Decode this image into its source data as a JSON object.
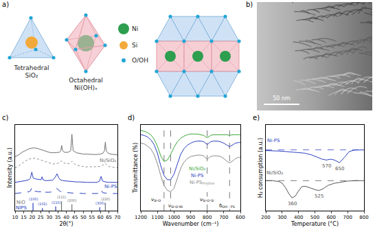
{
  "panel_a": {
    "label": "a)",
    "polyhedra": [
      {
        "name": "Tetrahedral",
        "formula": "SiO₂"
      },
      {
        "name": "Octahedral",
        "formula": "Ni(OH)ₓ"
      }
    ],
    "key": [
      {
        "text": "Ni",
        "color": "#2e9e4f"
      },
      {
        "text": "Si",
        "color": "#f2a93b"
      },
      {
        "text": "O/OH",
        "color": "#22a6d6"
      }
    ]
  },
  "panel_b": {
    "label": "b)",
    "scale_bar": "50 nm"
  },
  "chart_data": [
    {
      "panel_label": "c)",
      "type": "line",
      "x_label": "2θ(°)",
      "y_label": "Intensity (a.u.)",
      "xlim": [
        10,
        70
      ],
      "xticks": [
        10,
        15,
        20,
        25,
        30,
        35,
        40,
        45,
        50,
        55,
        60,
        65,
        70
      ],
      "ylim": [
        0,
        10
      ],
      "tick_labels": "x",
      "grid": false,
      "series": [
        {
          "color": "#707070",
          "line_style": "solid",
          "x": [
            10,
            12,
            14,
            16,
            18,
            20,
            22,
            24,
            26,
            28,
            30,
            32,
            34,
            36,
            36.8,
            37.3,
            37.8,
            39,
            41,
            42.6,
            43.3,
            44.0,
            46,
            48,
            50,
            52,
            54,
            56,
            58,
            60,
            61.5,
            62.4,
            62.9,
            63.4,
            64.5,
            66,
            68,
            70
          ],
          "values": [
            6.3,
            6.5,
            6.8,
            7.0,
            7.2,
            7.3,
            7.3,
            7.2,
            7.05,
            6.9,
            6.8,
            6.75,
            6.75,
            6.8,
            7.0,
            7.6,
            7.0,
            6.8,
            6.8,
            7.0,
            8.9,
            7.0,
            6.75,
            6.65,
            6.6,
            6.6,
            6.55,
            6.55,
            6.55,
            6.6,
            6.7,
            7.0,
            8.0,
            7.0,
            6.7,
            6.6,
            6.55,
            6.5
          ]
        },
        {
          "color": "#8c8c8c",
          "line_style": "dotted",
          "x": [
            10,
            12,
            14,
            16,
            18,
            20,
            22,
            24,
            26,
            28,
            30,
            32,
            34,
            35,
            36,
            37.3,
            38.5,
            40,
            42,
            43.3,
            44.5,
            46,
            48,
            50,
            52,
            54,
            56,
            58,
            60,
            61,
            62.9,
            64.5,
            66,
            68,
            70
          ],
          "values": [
            5.0,
            5.2,
            5.5,
            5.8,
            6.0,
            6.1,
            6.1,
            6.0,
            5.85,
            5.7,
            5.55,
            5.45,
            5.45,
            5.5,
            5.6,
            5.8,
            5.6,
            5.45,
            5.5,
            5.75,
            5.5,
            5.3,
            5.2,
            5.15,
            5.1,
            5.1,
            5.1,
            5.1,
            5.15,
            5.25,
            5.5,
            5.2,
            5.1,
            5.05,
            5.0
          ]
        },
        {
          "color": "#2b3fc0",
          "line_style": "solid",
          "x": [
            10,
            12,
            14,
            16,
            18,
            19,
            19.8,
            20.6,
            22,
            24,
            25.2,
            25.8,
            26.4,
            28,
            30,
            32,
            33.5,
            34.6,
            35.4,
            36.5,
            38,
            40,
            42,
            44,
            46,
            48,
            50,
            52,
            54,
            56,
            58,
            59.5,
            60.4,
            61.3,
            63,
            65,
            67,
            70
          ],
          "values": [
            3.3,
            3.35,
            3.4,
            3.5,
            3.6,
            3.8,
            4.5,
            3.8,
            3.7,
            3.6,
            3.6,
            3.95,
            3.6,
            3.5,
            3.5,
            3.55,
            3.9,
            4.3,
            3.9,
            3.6,
            3.5,
            3.45,
            3.4,
            3.4,
            3.35,
            3.35,
            3.3,
            3.3,
            3.3,
            3.3,
            3.3,
            3.45,
            4.0,
            3.45,
            3.35,
            3.3,
            3.3,
            3.3
          ]
        },
        {
          "color": "#2b3fc0",
          "line_style": "dash",
          "x": [
            10,
            12,
            14,
            16,
            18,
            19,
            19.8,
            20.6,
            22,
            24,
            25.2,
            25.8,
            26.4,
            28,
            30,
            32,
            33.5,
            34.6,
            35.4,
            36.5,
            38,
            40,
            42,
            44,
            46,
            48,
            50,
            52,
            54,
            56,
            58,
            59.5,
            60.4,
            61.3,
            63,
            65,
            67,
            70
          ],
          "values": [
            2.0,
            2.05,
            2.1,
            2.15,
            2.2,
            2.3,
            2.7,
            2.3,
            2.25,
            2.2,
            2.2,
            2.4,
            2.2,
            2.15,
            2.15,
            2.2,
            2.4,
            2.6,
            2.4,
            2.25,
            2.15,
            2.1,
            2.1,
            2.05,
            2.05,
            2.0,
            2.0,
            2.0,
            2.0,
            2.0,
            2.0,
            2.1,
            2.45,
            2.1,
            2.05,
            2.0,
            2.0,
            2.0
          ]
        }
      ],
      "references": [
        {
          "color": "#707070",
          "x": [
            37.2,
            43.3,
            62.9
          ],
          "values": [
            1.1,
            0.75,
            0.9
          ],
          "labels": [
            "(111)",
            "(200)",
            "(220)"
          ]
        },
        {
          "color": "#2b3fc0",
          "x": [
            20.5,
            26.0,
            33.8,
            59.6
          ],
          "values": [
            0.9,
            0.3,
            0.5,
            0.4
          ],
          "labels": [
            "(100)",
            "(102)",
            "(110)",
            "(300)"
          ]
        }
      ],
      "annotations": [
        {
          "text": "NiO",
          "x": 13.5,
          "y": 1.0,
          "color": "#707070"
        },
        {
          "text": "NIPS",
          "x": 14,
          "y": 0.35,
          "color": "#2b3fc0"
        },
        {
          "text": "Ni/SiO₂",
          "x": 64.5,
          "y": 5.85,
          "color": "#707070"
        },
        {
          "text": "Ni-PS",
          "x": 66,
          "y": 2.8,
          "color": "#2b3fc0"
        }
      ]
    },
    {
      "panel_label": "d)",
      "type": "line",
      "x_label": "Wavenumber (cm⁻¹)",
      "y_label": "Transmittance (%)",
      "xlim": [
        1200,
        600
      ],
      "xticks": [
        1200,
        1100,
        1000,
        900,
        800,
        700,
        600
      ],
      "ylim": [
        -0.22,
        1.0
      ],
      "tick_labels": "x",
      "grid": false,
      "series": [
        {
          "color": "#3aa535",
          "line_style": "solid",
          "x": [
            1200,
            1180,
            1160,
            1140,
            1120,
            1100,
            1080,
            1060,
            1040,
            1020,
            1000,
            980,
            960,
            940,
            920,
            900,
            880,
            860,
            840,
            820,
            810,
            800,
            790,
            780,
            760,
            740,
            720,
            700,
            680,
            665,
            650,
            630,
            610,
            600
          ],
          "values": [
            0.92,
            0.91,
            0.89,
            0.86,
            0.8,
            0.7,
            0.56,
            0.48,
            0.5,
            0.58,
            0.68,
            0.76,
            0.81,
            0.84,
            0.86,
            0.87,
            0.87,
            0.87,
            0.86,
            0.85,
            0.83,
            0.82,
            0.83,
            0.85,
            0.86,
            0.86,
            0.86,
            0.86,
            0.86,
            0.85,
            0.86,
            0.86,
            0.86,
            0.86
          ]
        },
        {
          "color": "#2b3fc0",
          "line_style": "solid",
          "x": [
            1200,
            1180,
            1160,
            1140,
            1120,
            1100,
            1080,
            1060,
            1040,
            1020,
            1000,
            980,
            960,
            940,
            920,
            900,
            880,
            860,
            840,
            820,
            810,
            800,
            790,
            780,
            760,
            740,
            720,
            700,
            680,
            665,
            650,
            630,
            610,
            600
          ],
          "values": [
            0.86,
            0.85,
            0.83,
            0.79,
            0.72,
            0.6,
            0.42,
            0.28,
            0.22,
            0.22,
            0.3,
            0.45,
            0.58,
            0.66,
            0.71,
            0.74,
            0.76,
            0.77,
            0.77,
            0.76,
            0.74,
            0.72,
            0.74,
            0.76,
            0.77,
            0.77,
            0.76,
            0.74,
            0.71,
            0.69,
            0.71,
            0.74,
            0.75,
            0.75
          ]
        },
        {
          "color": "#8a8a8a",
          "line_style": "solid",
          "x": [
            1200,
            1180,
            1160,
            1140,
            1120,
            1100,
            1080,
            1060,
            1040,
            1020,
            1000,
            980,
            960,
            940,
            920,
            900,
            880,
            860,
            840,
            820,
            810,
            800,
            790,
            780,
            760,
            740,
            720,
            700,
            680,
            665,
            650,
            630,
            610,
            600
          ],
          "values": [
            0.74,
            0.73,
            0.7,
            0.66,
            0.58,
            0.45,
            0.28,
            0.14,
            0.07,
            0.05,
            0.1,
            0.24,
            0.38,
            0.47,
            0.52,
            0.55,
            0.56,
            0.57,
            0.57,
            0.56,
            0.53,
            0.51,
            0.53,
            0.55,
            0.56,
            0.56,
            0.55,
            0.52,
            0.48,
            0.46,
            0.48,
            0.52,
            0.54,
            0.54
          ]
        }
      ],
      "reference_lines": [
        1060,
        1020,
        800,
        665
      ],
      "annotations": [
        {
          "text": "Ni/SiO₂",
          "x": 860,
          "y": 0.38,
          "color": "#3aa535"
        },
        {
          "text": "Ni-PS",
          "x": 860,
          "y": 0.28,
          "color": "#2b3fc0"
        },
        {
          "text": "Ni-PS",
          "sub": "Pristine",
          "x": 830,
          "y": 0.18,
          "color": "#8a8a8a"
        },
        {
          "text": "ν",
          "sub": "Si-O",
          "x": 1110,
          "y": -0.06,
          "color": "#000000"
        },
        {
          "text": "ν",
          "sub": "Si-O-Ni",
          "x": 990,
          "y": -0.15,
          "color": "#000000"
        },
        {
          "text": "ν",
          "sub": "Si-O-Si",
          "x": 800,
          "y": -0.06,
          "color": "#000000"
        },
        {
          "text": "δ",
          "sub": "OH - PS",
          "x": 680,
          "y": -0.15,
          "color": "#000000"
        }
      ]
    },
    {
      "panel_label": "e)",
      "type": "line",
      "x_label": "Temperature (°C)",
      "y_label": "H₂ consumption (a.u.)",
      "xlim": [
        200,
        800
      ],
      "xticks": [
        200,
        300,
        400,
        500,
        600,
        700,
        800
      ],
      "ylim": [
        0,
        10
      ],
      "tick_labels": "x",
      "grid": false,
      "series": [
        {
          "color": "#2b3fc0",
          "line_style": "solid",
          "baseline": 7.1,
          "x": [
            200,
            240,
            280,
            320,
            360,
            400,
            440,
            480,
            520,
            545,
            570,
            595,
            620,
            650,
            680,
            710,
            740,
            770,
            800
          ],
          "values": [
            7.0,
            7.0,
            6.95,
            6.9,
            6.85,
            6.8,
            6.7,
            6.5,
            6.2,
            6.0,
            5.9,
            6.0,
            5.9,
            5.6,
            6.2,
            6.9,
            7.05,
            7.1,
            7.1
          ]
        },
        {
          "color": "#555555",
          "line_style": "solid",
          "baseline": 3.5,
          "x": [
            200,
            240,
            280,
            300,
            320,
            340,
            360,
            380,
            400,
            420,
            440,
            460,
            480,
            500,
            525,
            550,
            580,
            620,
            660,
            700,
            750,
            800
          ],
          "values": [
            3.5,
            3.5,
            3.4,
            3.2,
            2.7,
            2.0,
            1.5,
            1.7,
            2.3,
            2.8,
            2.85,
            2.75,
            2.6,
            2.45,
            2.35,
            2.55,
            2.95,
            3.2,
            3.35,
            3.45,
            3.5,
            3.5
          ]
        }
      ],
      "annotations": [
        {
          "text": "Ni-PS",
          "x": 250,
          "y": 8.2,
          "color": "#2b3fc0"
        },
        {
          "text": "Ni/SiO₂",
          "x": 255,
          "y": 4.4,
          "color": "#555555"
        },
        {
          "text": "570",
          "x": 570,
          "y": 5.2,
          "color": "#555555"
        },
        {
          "text": "650",
          "x": 650,
          "y": 4.9,
          "color": "#555555"
        },
        {
          "text": "360",
          "x": 360,
          "y": 0.8,
          "color": "#555555"
        },
        {
          "text": "525",
          "x": 525,
          "y": 1.7,
          "color": "#555555"
        }
      ]
    }
  ]
}
